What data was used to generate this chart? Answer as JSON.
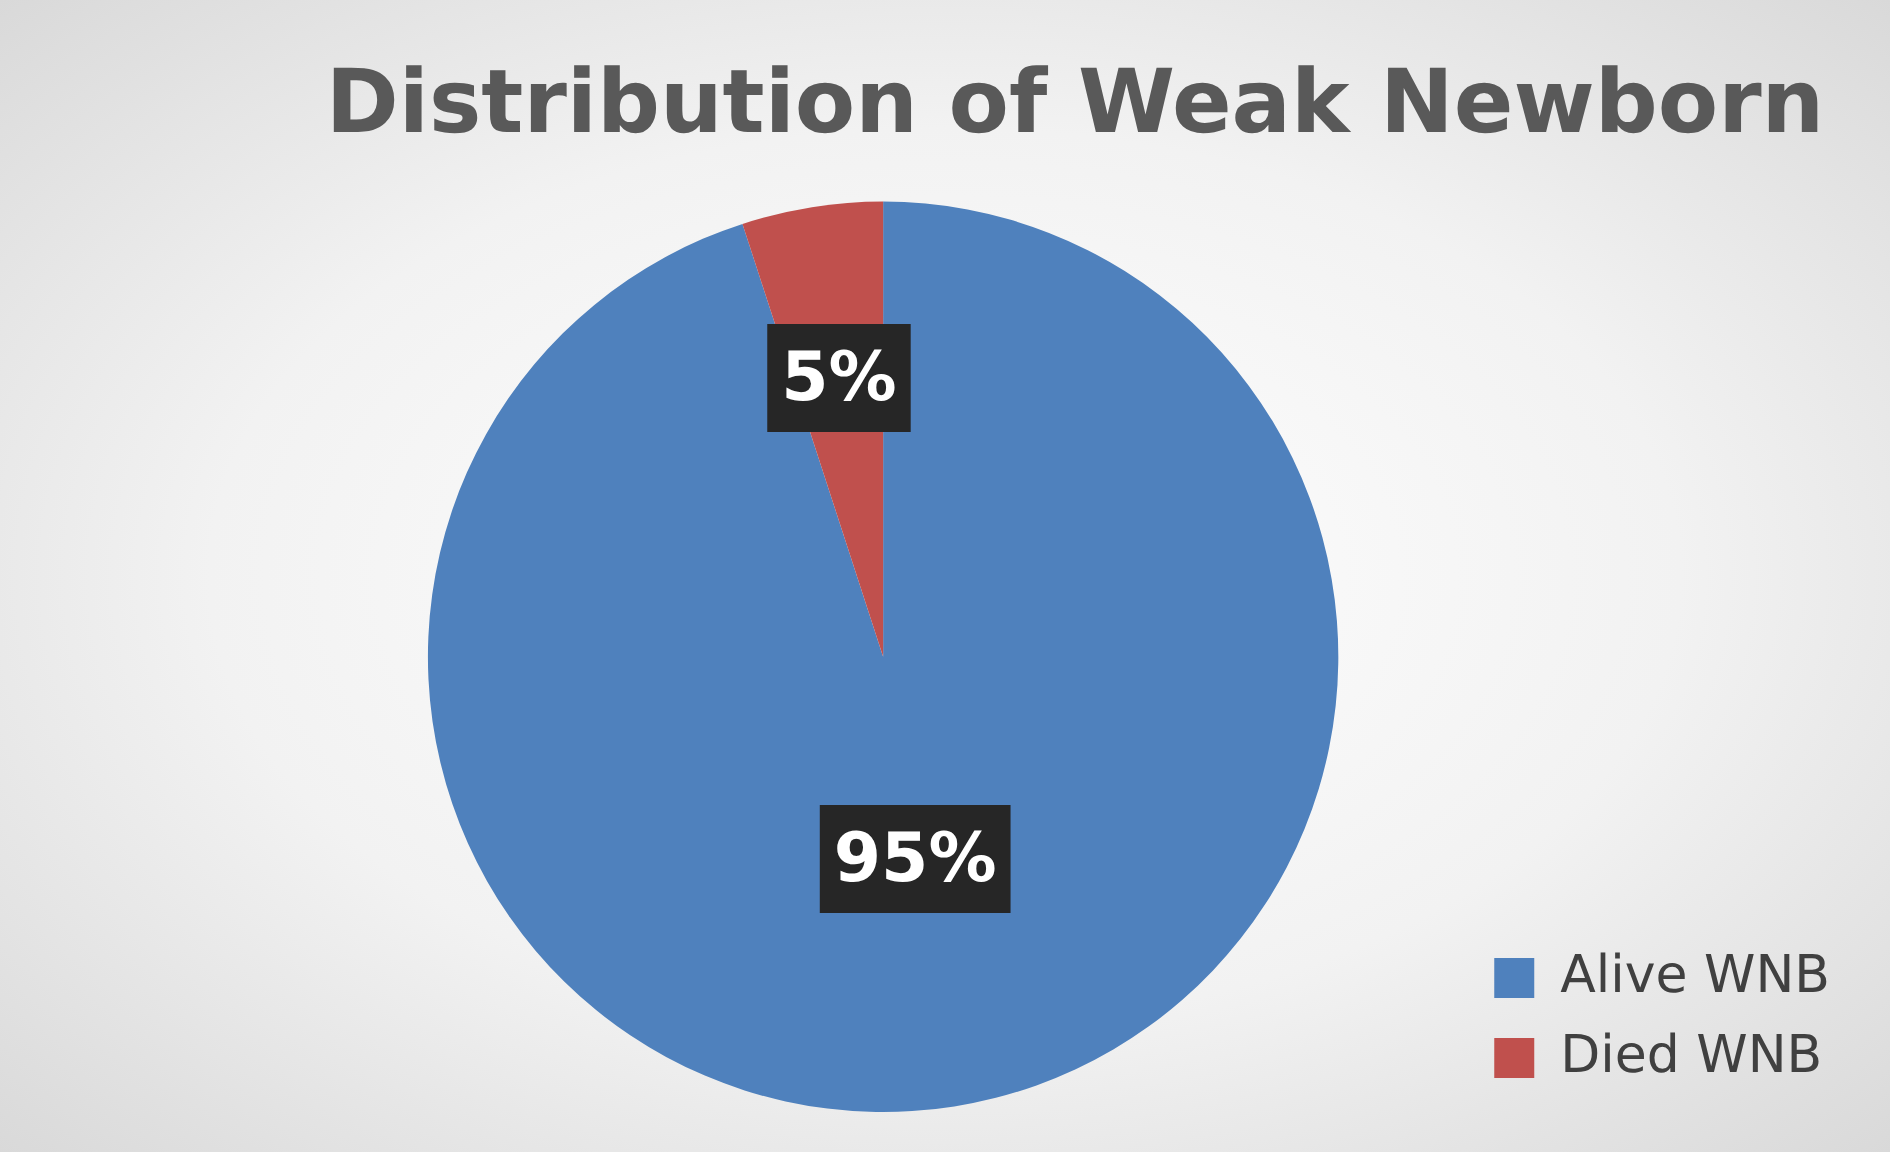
{
  "chart_data": {
    "type": "pie",
    "title": "Distribution of Weak Newborn",
    "categories": [
      "Alive WNB",
      "Died WNB"
    ],
    "values": [
      95,
      5
    ],
    "colors": [
      "#4f81bd",
      "#c0504d"
    ],
    "value_labels": [
      "95%",
      "5%"
    ],
    "legend": "bottom right"
  }
}
